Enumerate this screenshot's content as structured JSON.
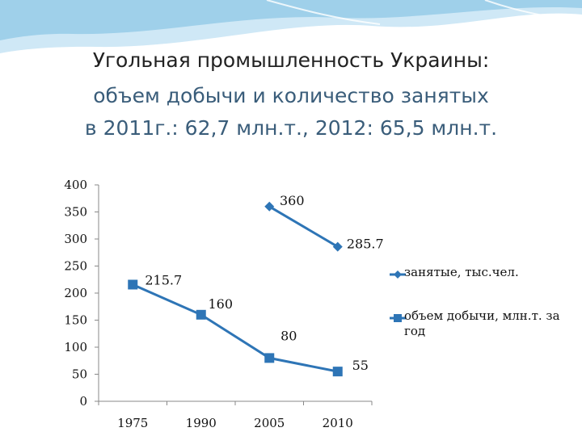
{
  "title": {
    "line1": "Угольная промышленность Украины:",
    "line2": "объем добычи и количество занятых",
    "line3": "в 2011г.: 62,7 млн.т., 2012: 65,5 млн.т."
  },
  "colors": {
    "series": "#2e75b6",
    "title_dark": "#222222",
    "title_accent": "#3a5d7a",
    "banner": "#9fd0ea"
  },
  "chart_data": {
    "type": "line",
    "categories": [
      "1975",
      "1990",
      "2005",
      "2010"
    ],
    "ylim": [
      0,
      400
    ],
    "yticks": [
      "0",
      "50",
      "100",
      "150",
      "200",
      "250",
      "300",
      "350",
      "400"
    ],
    "grid": false,
    "legend_position": "right",
    "series": [
      {
        "name": "занятые, тыс.чел.",
        "marker": "diamond",
        "values": [
          null,
          null,
          360,
          285.7
        ],
        "labels": [
          "",
          "",
          "360",
          "285.7"
        ]
      },
      {
        "name": "объем добычи, млн.т. за год",
        "marker": "square",
        "values": [
          215.7,
          160,
          80,
          55
        ],
        "labels": [
          "215.7",
          "160",
          "80",
          "55"
        ]
      }
    ]
  }
}
